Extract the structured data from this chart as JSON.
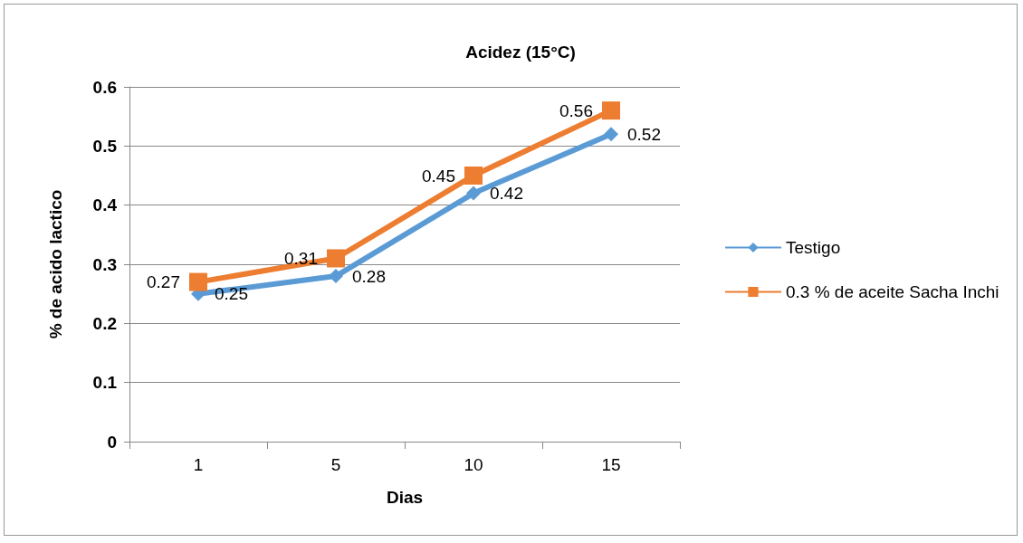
{
  "chart_data": {
    "type": "line",
    "title": "Acidez (15°C)",
    "xlabel": "Dias",
    "ylabel": "% de acido lactico",
    "categories": [
      "1",
      "5",
      "10",
      "15"
    ],
    "series": [
      {
        "name": "Testigo",
        "color": "#5b9bd5",
        "marker": "diamond",
        "values": [
          0.25,
          0.28,
          0.42,
          0.52
        ]
      },
      {
        "name": "0.3 % de aceite Sacha Inchi",
        "color": "#ed7d31",
        "marker": "square",
        "values": [
          0.27,
          0.31,
          0.45,
          0.56
        ]
      }
    ],
    "ylim": [
      0,
      0.6
    ],
    "yticks": [
      0,
      0.1,
      0.2,
      0.3,
      0.4,
      0.5,
      0.6
    ],
    "grid": "y",
    "legend": "right",
    "data_labels": true
  }
}
